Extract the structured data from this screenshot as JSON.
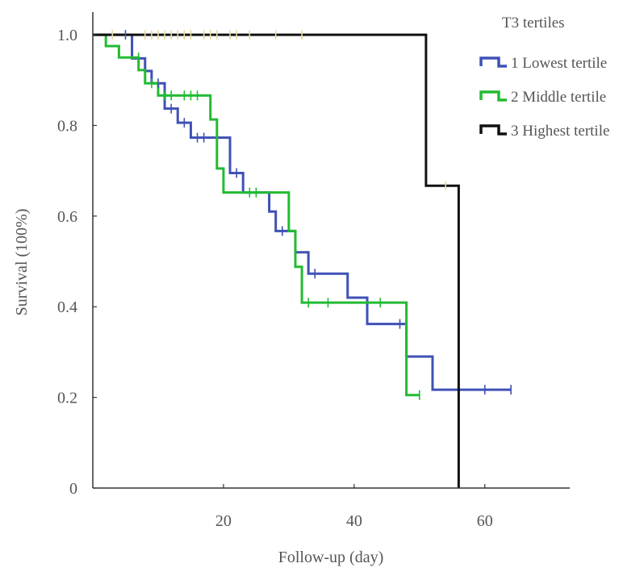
{
  "chart_data": {
    "type": "line",
    "subtype": "kaplan-meier",
    "xlabel": "Follow-up (day)",
    "ylabel": "Survival (100%)",
    "xlim": [
      0,
      73
    ],
    "ylim": [
      0,
      1.05
    ],
    "x_ticks": [
      20,
      40,
      60
    ],
    "y_ticks": [
      {
        "value": 0,
        "label": "0"
      },
      {
        "value": 0.2,
        "label": "0.2"
      },
      {
        "value": 0.4,
        "label": "0.4"
      },
      {
        "value": 0.6,
        "label": "0.6"
      },
      {
        "value": 0.8,
        "label": "0.8"
      },
      {
        "value": 1.0,
        "label": "1.0"
      }
    ],
    "legend_title": "T3 tertiles",
    "legend_position": "top-right",
    "censor_color": "#e6dba0",
    "series": [
      {
        "name": "1 Lowest tertile",
        "color": "#3f51b5",
        "steps": [
          [
            0,
            1.0
          ],
          [
            6,
            0.948
          ],
          [
            8,
            0.92
          ],
          [
            9,
            0.893
          ],
          [
            11,
            0.837
          ],
          [
            13,
            0.806
          ],
          [
            15,
            0.773
          ],
          [
            21,
            0.695
          ],
          [
            23,
            0.652
          ],
          [
            27,
            0.61
          ],
          [
            28,
            0.567
          ],
          [
            31,
            0.52
          ],
          [
            33,
            0.473
          ],
          [
            39,
            0.42
          ],
          [
            42,
            0.362
          ],
          [
            48,
            0.29
          ],
          [
            52,
            0.217
          ],
          [
            64,
            0.217
          ]
        ],
        "censors": [
          [
            5,
            1.0
          ],
          [
            10,
            0.893
          ],
          [
            12,
            0.837
          ],
          [
            14,
            0.806
          ],
          [
            16,
            0.773
          ],
          [
            17,
            0.773
          ],
          [
            22,
            0.695
          ],
          [
            29,
            0.567
          ],
          [
            34,
            0.473
          ],
          [
            47,
            0.362
          ],
          [
            60,
            0.217
          ],
          [
            64,
            0.217
          ]
        ]
      },
      {
        "name": "2 Middle tertile",
        "color": "#22bb33",
        "steps": [
          [
            0,
            1.0
          ],
          [
            2,
            0.975
          ],
          [
            4,
            0.95
          ],
          [
            7,
            0.922
          ],
          [
            8,
            0.893
          ],
          [
            10,
            0.866
          ],
          [
            18,
            0.813
          ],
          [
            19,
            0.705
          ],
          [
            20,
            0.652
          ],
          [
            30,
            0.567
          ],
          [
            31,
            0.488
          ],
          [
            32,
            0.409
          ],
          [
            48,
            0.205
          ],
          [
            50,
            0.205
          ]
        ],
        "censors": [
          [
            7,
            0.95
          ],
          [
            9,
            0.893
          ],
          [
            11,
            0.866
          ],
          [
            12,
            0.866
          ],
          [
            14,
            0.866
          ],
          [
            15,
            0.866
          ],
          [
            16,
            0.866
          ],
          [
            24,
            0.652
          ],
          [
            25,
            0.652
          ],
          [
            33,
            0.409
          ],
          [
            36,
            0.409
          ],
          [
            44,
            0.409
          ],
          [
            50,
            0.205
          ]
        ]
      },
      {
        "name": "3 Highest tertile",
        "color": "#111111",
        "steps": [
          [
            0,
            1.0
          ],
          [
            51,
            0.667
          ],
          [
            56,
            0
          ],
          [
            56,
            0
          ]
        ],
        "censors": [
          [
            3,
            1.0
          ],
          [
            8,
            1.0
          ],
          [
            9,
            1.0
          ],
          [
            10,
            1.0
          ],
          [
            11,
            1.0
          ],
          [
            12,
            1.0
          ],
          [
            13,
            1.0
          ],
          [
            14,
            1.0
          ],
          [
            15,
            1.0
          ],
          [
            17,
            1.0
          ],
          [
            18,
            1.0
          ],
          [
            19,
            1.0
          ],
          [
            21,
            1.0
          ],
          [
            22,
            1.0
          ],
          [
            24,
            1.0
          ],
          [
            28,
            1.0
          ],
          [
            32,
            1.0
          ],
          [
            54,
            0.667
          ]
        ]
      }
    ]
  }
}
